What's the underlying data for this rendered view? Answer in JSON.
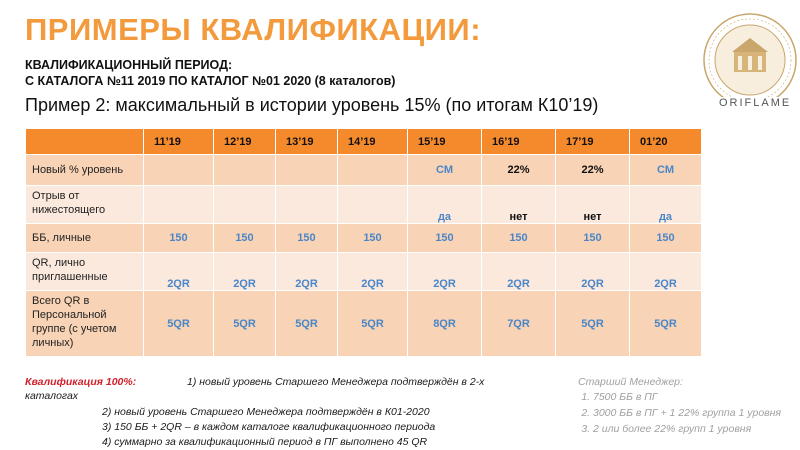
{
  "title": "ПРИМЕРЫ КВАЛИФИКАЦИИ:",
  "subtitle_line1": "КВАЛИФИКАЦИОННЫЙ ПЕРИОД:",
  "subtitle_line2": "С КАТАЛОГА №11 2019 ПО КАТАЛОГ №01 2020 (8 каталогов)",
  "example": "Пример 2: максимальный в истории уровень 15% (по итогам К10’19)",
  "brand": "ORIFLAME",
  "logo_icon": "megaconference-seal-icon",
  "table": {
    "columns": [
      "",
      "11’19",
      "12’19",
      "13’19",
      "14’19",
      "15’19",
      "16’19",
      "17’19",
      "01’20"
    ],
    "rows": [
      {
        "label": "Новый % уровень",
        "cells": [
          "",
          "",
          "",
          "",
          "СМ",
          "22%",
          "22%",
          "СМ"
        ],
        "colors": [
          "",
          "",
          "",
          "",
          "blue",
          "dark",
          "dark",
          "blue"
        ]
      },
      {
        "label": "Отрыв от нижестоящего",
        "cells": [
          "",
          "",
          "",
          "",
          "да",
          "нет",
          "нет",
          "да"
        ],
        "colors": [
          "",
          "",
          "",
          "",
          "blue",
          "dark",
          "dark",
          "blue"
        ]
      },
      {
        "label": "ББ, личные",
        "cells": [
          "150",
          "150",
          "150",
          "150",
          "150",
          "150",
          "150",
          "150"
        ],
        "colors": [
          "blue",
          "blue",
          "blue",
          "blue",
          "blue",
          "blue",
          "blue",
          "blue"
        ]
      },
      {
        "label": "QR, лично приглашенные",
        "cells": [
          "2QR",
          "2QR",
          "2QR",
          "2QR",
          "2QR",
          "2QR",
          "2QR",
          "2QR"
        ],
        "colors": [
          "blue",
          "blue",
          "blue",
          "blue",
          "blue",
          "blue",
          "blue",
          "blue"
        ]
      },
      {
        "label": "Всего QR в Персональной группе (с учетом личных)",
        "cells": [
          "5QR",
          "5QR",
          "5QR",
          "5QR",
          "8QR",
          "7QR",
          "5QR",
          "5QR"
        ],
        "colors": [
          "blue",
          "blue",
          "blue",
          "blue",
          "blue",
          "blue",
          "blue",
          "blue"
        ]
      }
    ]
  },
  "qualification": {
    "title": "Квалификация 100%:",
    "item1": "1) новый уровень Старшего Менеджера подтверждён в 2-х",
    "item1_cont": "каталогах",
    "item2": "2) новый уровень Старшего Менеджера подтверждён в К01-2020",
    "item3": "3) 150 ББ + 2QR – в каждом каталоге квалификационного периода",
    "item4": "4) суммарно за квалификационный период в ПГ выполнено 45 QR"
  },
  "senior_manager": {
    "title": "Старший Менеджер:",
    "items": [
      "7500 ББ в ПГ",
      "3000 ББ в ПГ + 1 22% группа 1 уровня",
      "2 или более 22% групп 1 уровня"
    ]
  },
  "colors": {
    "accent": "#f39a3c",
    "header": "#f58a2c",
    "row_dark": "#f8d3b6",
    "row_light": "#fce9dd",
    "value_blue": "#4a86c8",
    "qual_red": "#d3202a"
  }
}
